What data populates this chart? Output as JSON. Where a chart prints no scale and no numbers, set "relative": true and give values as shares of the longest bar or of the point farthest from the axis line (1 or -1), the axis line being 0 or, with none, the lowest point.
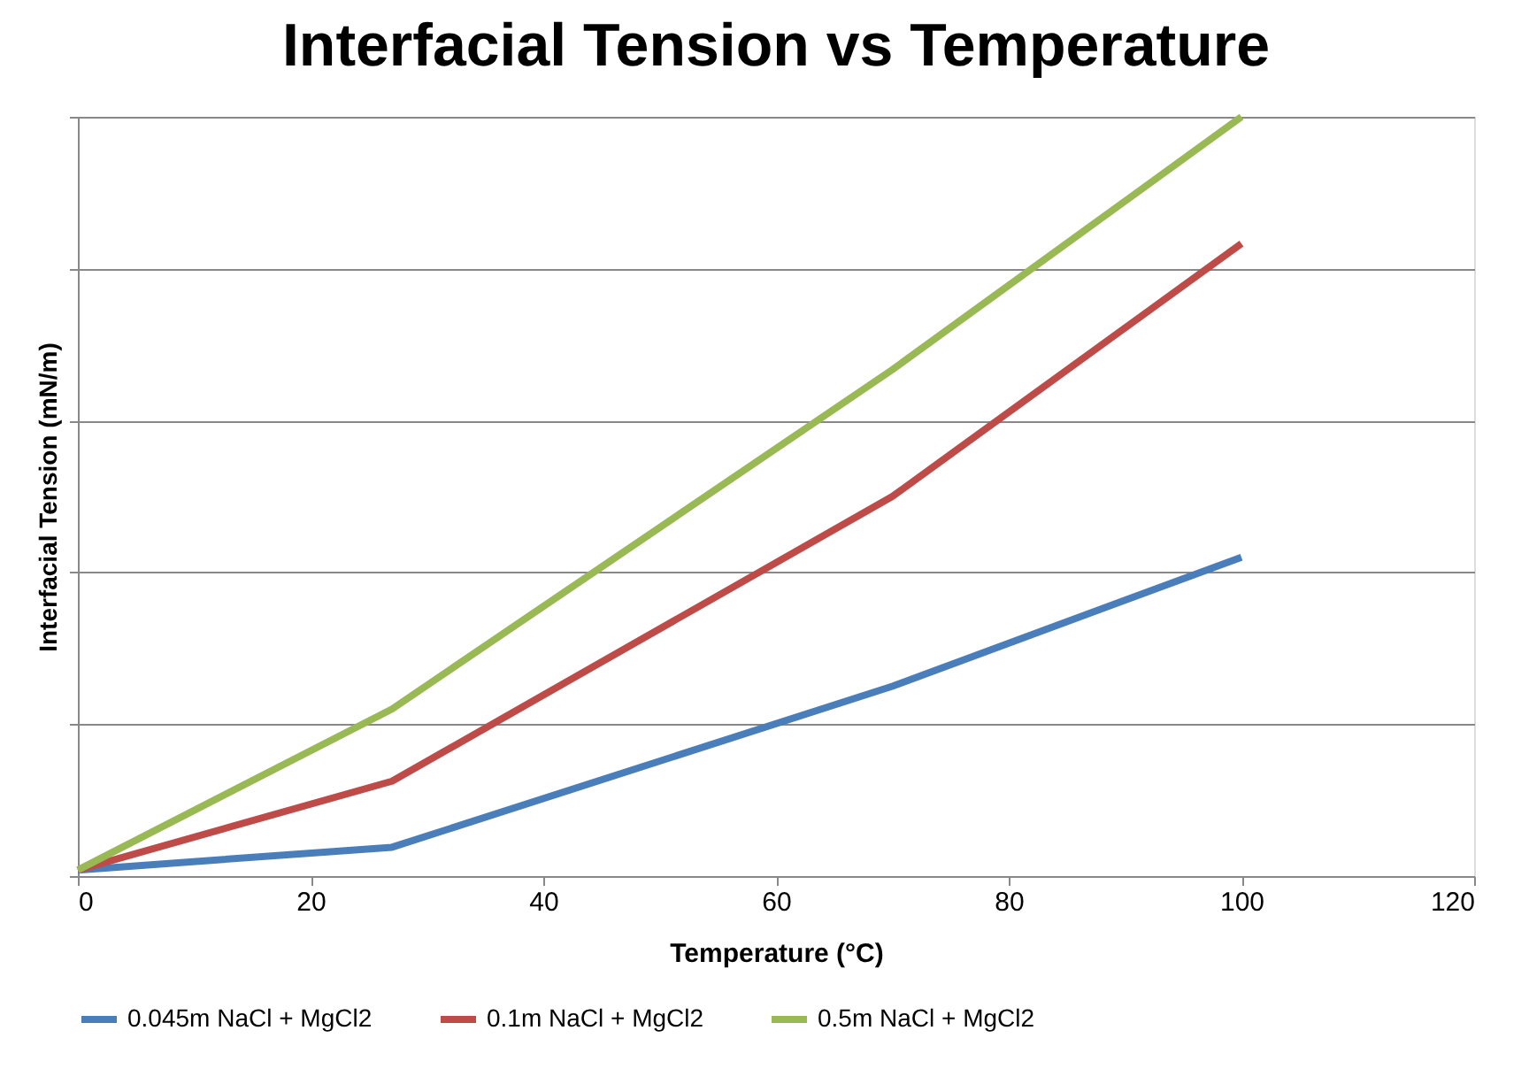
{
  "chart_data": {
    "type": "line",
    "title": "Interfacial Tension vs Temperature",
    "xlabel": "Temperature (°C)",
    "ylabel": "Interfacial Tension  (mN/m)",
    "relative": true,
    "x": [
      0,
      27,
      70,
      100
    ],
    "xlim": [
      0,
      120
    ],
    "xticks": [
      0,
      20,
      40,
      60,
      80,
      100,
      120
    ],
    "grid": "y",
    "legend": "bottom",
    "line_style": "solid",
    "marker": "none",
    "series": [
      {
        "name": "0.045m NaCl + MgCl2",
        "color": "#4a7ebb",
        "values": [
          0.008,
          0.038,
          0.25,
          0.42
        ]
      },
      {
        "name": "0.1m NaCl + MgCl2",
        "color": "#be4b48",
        "values": [
          0.008,
          0.125,
          0.5,
          0.833
        ]
      },
      {
        "name": "0.5m NaCl + MgCl2",
        "color": "#98b954",
        "values": [
          0.008,
          0.22,
          0.667,
          1
        ]
      }
    ]
  }
}
